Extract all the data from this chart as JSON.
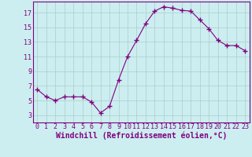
{
  "x": [
    0,
    1,
    2,
    3,
    4,
    5,
    6,
    7,
    8,
    9,
    10,
    11,
    12,
    13,
    14,
    15,
    16,
    17,
    18,
    19,
    20,
    21,
    22,
    23
  ],
  "y": [
    6.5,
    5.5,
    5.0,
    5.5,
    5.5,
    5.5,
    4.8,
    3.3,
    4.2,
    7.8,
    11.0,
    13.2,
    15.5,
    17.2,
    17.8,
    17.6,
    17.3,
    17.2,
    16.0,
    14.8,
    13.2,
    12.5,
    12.5,
    11.8
  ],
  "line_color": "#800080",
  "marker": "+",
  "marker_size": 4,
  "bg_color": "#cceef0",
  "grid_color": "#aacccc",
  "xlabel": "Windchill (Refroidissement éolien,°C)",
  "xlabel_fontsize": 7,
  "ytick_labels": [
    "3",
    "5",
    "7",
    "9",
    "11",
    "13",
    "15",
    "17"
  ],
  "ytick_vals": [
    3,
    5,
    7,
    9,
    11,
    13,
    15,
    17
  ],
  "xtick_vals": [
    0,
    1,
    2,
    3,
    4,
    5,
    6,
    7,
    8,
    9,
    10,
    11,
    12,
    13,
    14,
    15,
    16,
    17,
    18,
    19,
    20,
    21,
    22,
    23
  ],
  "ylim": [
    2.0,
    18.5
  ],
  "xlim": [
    -0.5,
    23.5
  ],
  "tick_fontsize": 6,
  "spine_color": "#800080"
}
